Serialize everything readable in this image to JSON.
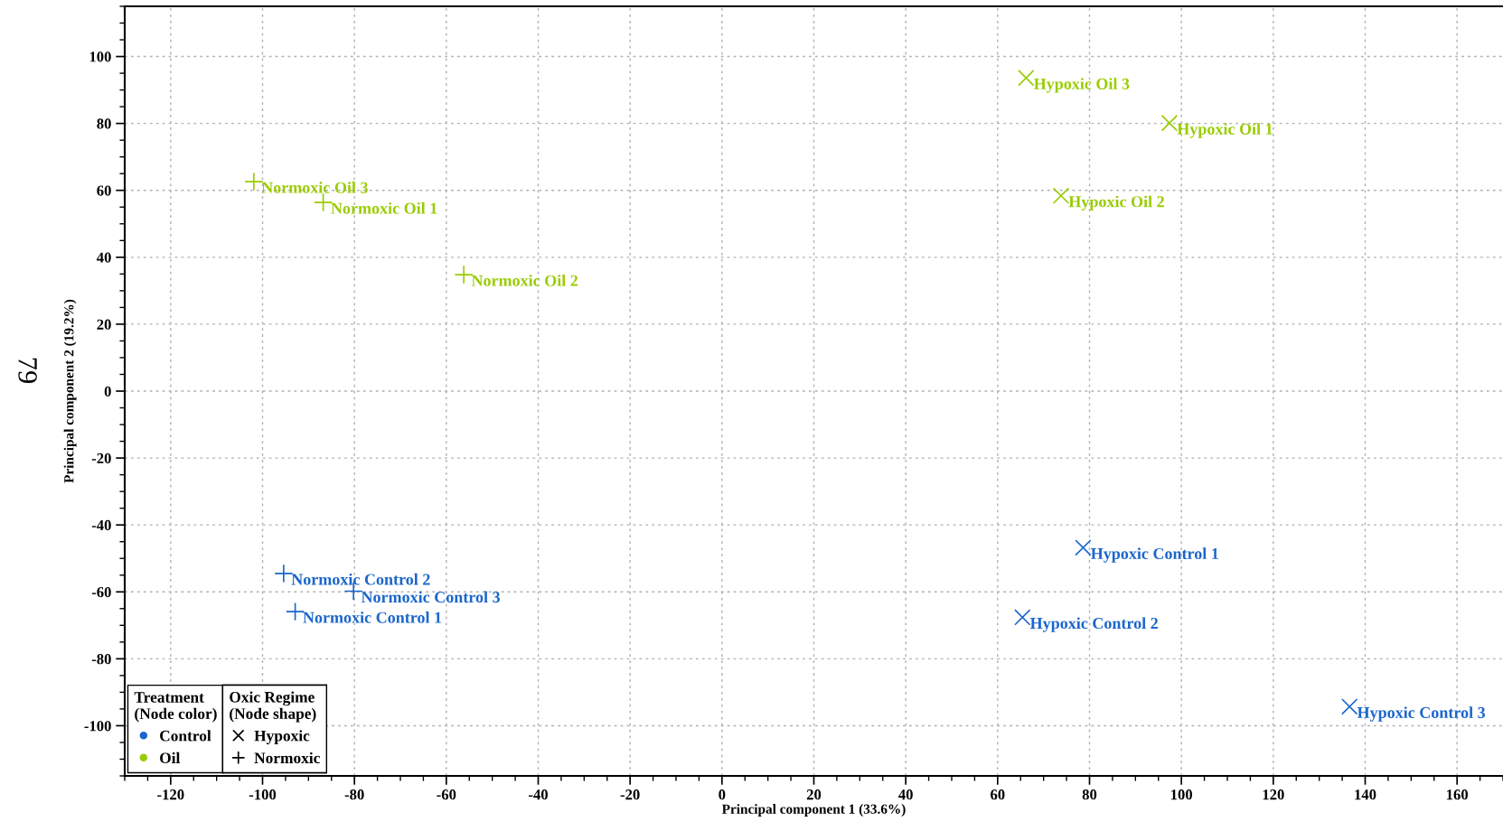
{
  "chart_data": {
    "type": "scatter",
    "xlabel": "Principal component 1 (33.6%)",
    "ylabel": "Principal component 2 (19.2%)",
    "xlim": [
      -130,
      170
    ],
    "ylim": [
      -115,
      115
    ],
    "xticks": [
      -120,
      -100,
      -80,
      -60,
      -40,
      -20,
      0,
      20,
      40,
      60,
      80,
      100,
      120,
      140,
      160
    ],
    "yticks": [
      -100,
      -80,
      -60,
      -40,
      -20,
      0,
      20,
      40,
      60,
      80,
      100
    ],
    "grid": true,
    "legend": "bottom left",
    "legend_title": [
      "Treatment\n(Node color)",
      "Oxic Regime\n(Node shape)"
    ],
    "series": [
      {
        "color": "#99cc00",
        "marker": "plus",
        "x": [
          -101.9,
          -86.8,
          -56.2
        ],
        "values": [
          62.6,
          56.4,
          34.8
        ]
      },
      {
        "color": "#99cc00",
        "marker": "cross",
        "x": [
          66.2,
          97.4,
          73.8
        ],
        "values": [
          93.6,
          80.1,
          58.4
        ]
      },
      {
        "color": "#1a66cc",
        "marker": "plus",
        "x": [
          -95.4,
          -80.2,
          -92.9
        ],
        "values": [
          -54.5,
          -59.8,
          -65.9
        ]
      },
      {
        "color": "#1a66cc",
        "marker": "cross",
        "x": [
          78.6,
          65.4,
          136.6
        ],
        "values": [
          -46.8,
          -67.6,
          -94.3
        ]
      },
      {
        "name": "Control",
        "color": "#1a66cc",
        "marker": "circle"
      },
      {
        "name": "Oil",
        "color": "#99cc00",
        "marker": "circle"
      },
      {
        "name": "Hypoxic",
        "color": "#000000",
        "marker": "cross"
      },
      {
        "name": "Normoxic",
        "color": "#000000",
        "marker": "plus"
      }
    ],
    "annotations": [
      {
        "text": "Normoxic Oil 3",
        "x": -101.9,
        "y": 62.6
      },
      {
        "text": "Normoxic Oil 1",
        "x": -86.8,
        "y": 56.4
      },
      {
        "text": "Normoxic Oil 2",
        "x": -56.2,
        "y": 34.8
      },
      {
        "text": "Hypoxic Oil 3",
        "x": 66.2,
        "y": 93.6
      },
      {
        "text": "Hypoxic Oil 1",
        "x": 97.4,
        "y": 80.1
      },
      {
        "text": "Hypoxic Oil 2",
        "x": 73.8,
        "y": 58.4
      },
      {
        "text": "Normoxic Control 2",
        "x": -95.4,
        "y": -54.5
      },
      {
        "text": "Normoxic Control 3",
        "x": -80.2,
        "y": -59.8
      },
      {
        "text": "Normoxic Control 1",
        "x": -92.9,
        "y": -65.9
      },
      {
        "text": "Hypoxic Control 1",
        "x": 78.6,
        "y": -46.8
      },
      {
        "text": "Hypoxic Control 2",
        "x": 65.4,
        "y": -67.6
      },
      {
        "text": "Hypoxic Control 3",
        "x": 136.6,
        "y": -94.3
      },
      "79"
    ]
  }
}
